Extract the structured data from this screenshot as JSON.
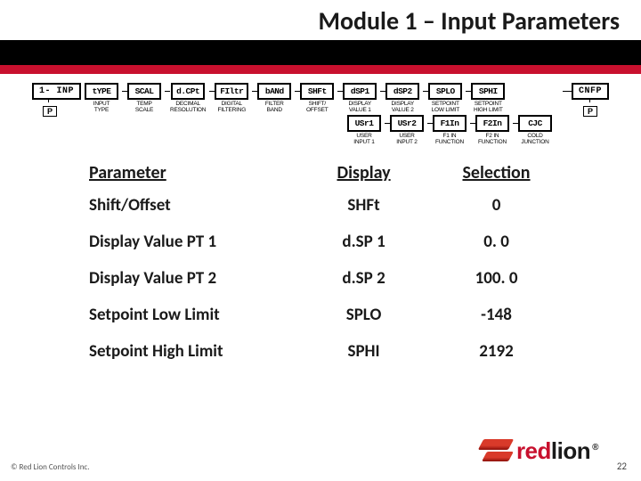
{
  "title": "Module 1 – Input Parameters",
  "diagram": {
    "start": "1- INP",
    "p": "P",
    "end": "CNFP",
    "row1": [
      {
        "code": "tYPE",
        "label": "INPUT\nTYPE"
      },
      {
        "code": "SCAL",
        "label": "TEMP\nSCALE"
      },
      {
        "code": "d.CPt",
        "label": "DECIMAL\nRESOLUTION"
      },
      {
        "code": "FIltr",
        "label": "DIGITAL\nFILTERING"
      },
      {
        "code": "bANd",
        "label": "FILTER\nBAND"
      },
      {
        "code": "SHFt",
        "label": "SHIFT/\nOFFSET"
      },
      {
        "code": "dSP1",
        "label": "DISPLAY\nVALUE 1"
      },
      {
        "code": "dSP2",
        "label": "DISPLAY\nVALUE 2"
      },
      {
        "code": "SPLO",
        "label": "SETPOINT\nLOW LIMIT"
      },
      {
        "code": "SPHI",
        "label": "SETPOINT\nHIGH LIMIT"
      }
    ],
    "row2": [
      {
        "code": "USr1",
        "label": "USER\nINPUT 1"
      },
      {
        "code": "USr2",
        "label": "USER\nINPUT 2"
      },
      {
        "code": "F1In",
        "label": "F1 IN\nFUNCTION"
      },
      {
        "code": "F2In",
        "label": "F2 IN\nFUNCTION"
      },
      {
        "code": "CJC",
        "label": "COLD\nJUNCTION"
      }
    ]
  },
  "table": {
    "headers": [
      "Parameter",
      "Display",
      "Selection"
    ],
    "rows": [
      [
        "Shift/Offset",
        "SHFt",
        "0"
      ],
      [
        "Display Value PT 1",
        "d.SP 1",
        "0. 0"
      ],
      [
        "Display Value PT 2",
        "d.SP 2",
        "100. 0"
      ],
      [
        "Setpoint Low Limit",
        "SPLO",
        "-148"
      ],
      [
        "Setpoint High Limit",
        "SPHI",
        "2192"
      ]
    ]
  },
  "footer": "© Red Lion Controls Inc.",
  "logo": {
    "red": "red",
    "lion": "lion"
  },
  "page": "22"
}
